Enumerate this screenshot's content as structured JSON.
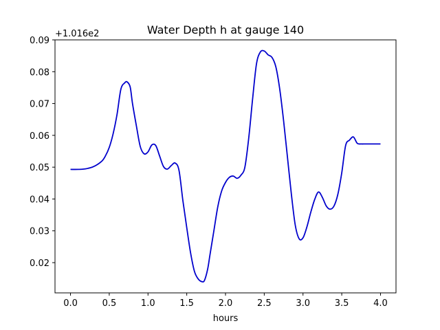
{
  "chart_data": {
    "type": "line",
    "title": "Water Depth h at gauge 140",
    "xlabel": "hours",
    "ylabel": "",
    "y_offset_label": "+1.016e2",
    "xlim": [
      -0.2,
      4.2
    ],
    "ylim": [
      0.0105,
      0.09
    ],
    "x_ticks": [
      0.0,
      0.5,
      1.0,
      1.5,
      2.0,
      2.5,
      3.0,
      3.5,
      4.0
    ],
    "x_tick_labels": [
      "0.0",
      "0.5",
      "1.0",
      "1.5",
      "2.0",
      "2.5",
      "3.0",
      "3.5",
      "4.0"
    ],
    "y_ticks": [
      0.02,
      0.03,
      0.04,
      0.05,
      0.06,
      0.07,
      0.08,
      0.09
    ],
    "y_tick_labels": [
      "0.02",
      "0.03",
      "0.04",
      "0.05",
      "0.06",
      "0.07",
      "0.08",
      "0.09"
    ],
    "grid": false,
    "legend": "none",
    "line_color": "#0000cc",
    "series": [
      {
        "x": [
          0.0,
          0.1,
          0.2,
          0.3,
          0.4,
          0.45,
          0.5,
          0.55,
          0.6,
          0.65,
          0.7,
          0.73,
          0.77,
          0.8,
          0.85,
          0.9,
          0.95,
          1.0,
          1.05,
          1.1,
          1.15,
          1.2,
          1.25,
          1.3,
          1.35,
          1.4,
          1.45,
          1.5,
          1.55,
          1.6,
          1.65,
          1.7,
          1.73,
          1.77,
          1.8,
          1.85,
          1.9,
          1.95,
          2.0,
          2.05,
          2.1,
          2.15,
          2.2,
          2.25,
          2.3,
          2.35,
          2.4,
          2.45,
          2.5,
          2.55,
          2.6,
          2.65,
          2.7,
          2.75,
          2.8,
          2.85,
          2.9,
          2.95,
          3.0,
          3.05,
          3.1,
          3.15,
          3.2,
          3.25,
          3.3,
          3.35,
          3.4,
          3.45,
          3.5,
          3.55,
          3.6,
          3.65,
          3.7,
          3.75,
          3.8,
          3.85,
          3.9,
          3.95,
          4.0
        ],
        "values": [
          0.0493,
          0.0493,
          0.0495,
          0.0502,
          0.0518,
          0.0535,
          0.0562,
          0.0605,
          0.0665,
          0.0745,
          0.0765,
          0.0768,
          0.0752,
          0.07,
          0.063,
          0.0565,
          0.0542,
          0.0548,
          0.057,
          0.0568,
          0.0535,
          0.0502,
          0.0494,
          0.0505,
          0.0513,
          0.049,
          0.0395,
          0.031,
          0.023,
          0.0172,
          0.0148,
          0.014,
          0.0145,
          0.018,
          0.0225,
          0.03,
          0.0375,
          0.0425,
          0.0452,
          0.0468,
          0.0472,
          0.0465,
          0.0475,
          0.05,
          0.0592,
          0.0715,
          0.0825,
          0.0862,
          0.0865,
          0.0853,
          0.0845,
          0.0815,
          0.0745,
          0.0645,
          0.053,
          0.0415,
          0.0318,
          0.0275,
          0.0278,
          0.0312,
          0.0358,
          0.0398,
          0.0422,
          0.0405,
          0.0378,
          0.0368,
          0.0378,
          0.0415,
          0.0482,
          0.0568,
          0.0585,
          0.0595,
          0.0575,
          0.0573,
          0.0573,
          0.0573,
          0.0573,
          0.0573,
          0.0573
        ]
      }
    ]
  }
}
